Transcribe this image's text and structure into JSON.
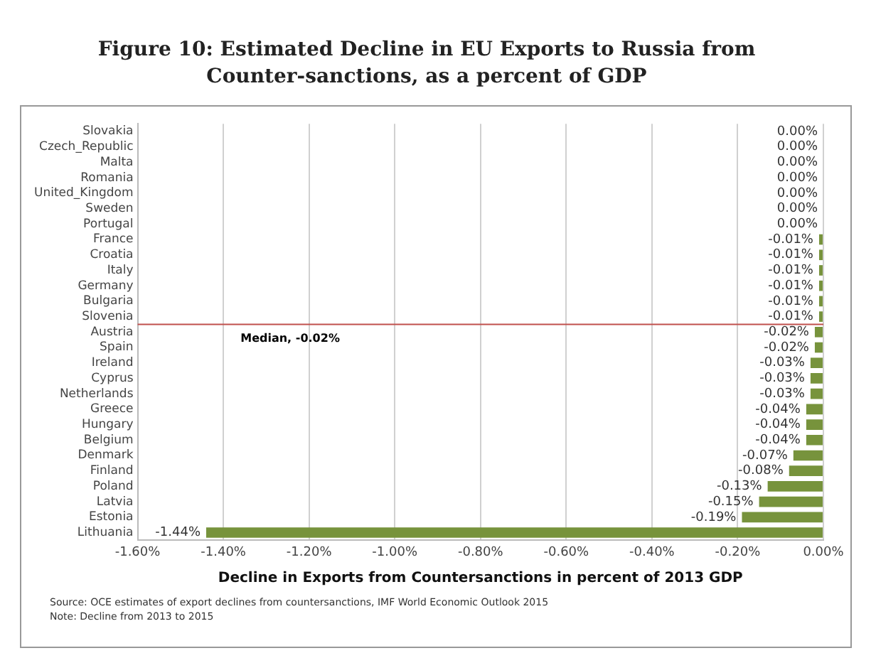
{
  "chart_data": {
    "type": "bar",
    "orientation": "horizontal",
    "title": "Figure 10: Estimated Decline in EU Exports to Russia from Counter-sanctions, as a percent of GDP",
    "xlabel": "Decline in Exports from Countersanctions in percent of 2013 GDP",
    "categories": [
      "Slovakia",
      "Czech_Republic",
      "Malta",
      "Romania",
      "United_Kingdom",
      "Sweden",
      "Portugal",
      "France",
      "Croatia",
      "Italy",
      "Germany",
      "Bulgaria",
      "Slovenia",
      "Austria",
      "Spain",
      "Ireland",
      "Cyprus",
      "Netherlands",
      "Greece",
      "Hungary",
      "Belgium",
      "Denmark",
      "Finland",
      "Poland",
      "Latvia",
      "Estonia",
      "Lithuania"
    ],
    "values": [
      0,
      0,
      0,
      0,
      0,
      0,
      0,
      -0.01,
      -0.01,
      -0.01,
      -0.01,
      -0.01,
      -0.01,
      -0.02,
      -0.02,
      -0.03,
      -0.03,
      -0.03,
      -0.04,
      -0.04,
      -0.04,
      -0.07,
      -0.08,
      -0.13,
      -0.15,
      -0.19,
      -1.44
    ],
    "value_labels": [
      "0.00%",
      "0.00%",
      "0.00%",
      "0.00%",
      "0.00%",
      "0.00%",
      "0.00%",
      "-0.01%",
      "-0.01%",
      "-0.01%",
      "-0.01%",
      "-0.01%",
      "-0.01%",
      "-0.02%",
      "-0.02%",
      "-0.03%",
      "-0.03%",
      "-0.03%",
      "-0.04%",
      "-0.04%",
      "-0.04%",
      "-0.07%",
      "-0.08%",
      "-0.13%",
      "-0.15%",
      "-0.19%",
      "-1.44%"
    ],
    "color": "#77933c",
    "xlim": [
      -1.6,
      0
    ],
    "xticks": [
      {
        "value": -1.6,
        "label": "-1.60%"
      },
      {
        "value": -1.4,
        "label": "-1.40%"
      },
      {
        "value": -1.2,
        "label": "-1.20%"
      },
      {
        "value": -1,
        "label": "-1.00%"
      },
      {
        "value": -0.8,
        "label": "-0.80%"
      },
      {
        "value": -0.6,
        "label": "-0.60%"
      },
      {
        "value": -0.4,
        "label": "-0.40%"
      },
      {
        "value": -0.2,
        "label": "-0.20%"
      },
      {
        "value": 0,
        "label": "0.00%"
      }
    ],
    "grid": "x",
    "legend": false,
    "ref_lines": [
      {
        "axis": "y",
        "value": "Austria",
        "label": "Median, -0.02%",
        "color": "#c0504d"
      }
    ],
    "annotations": [
      "Source: OCE estimates of export declines from countersanctions, IMF World Economic Outlook 2015",
      "Note: Decline from 2013 to 2015"
    ]
  }
}
